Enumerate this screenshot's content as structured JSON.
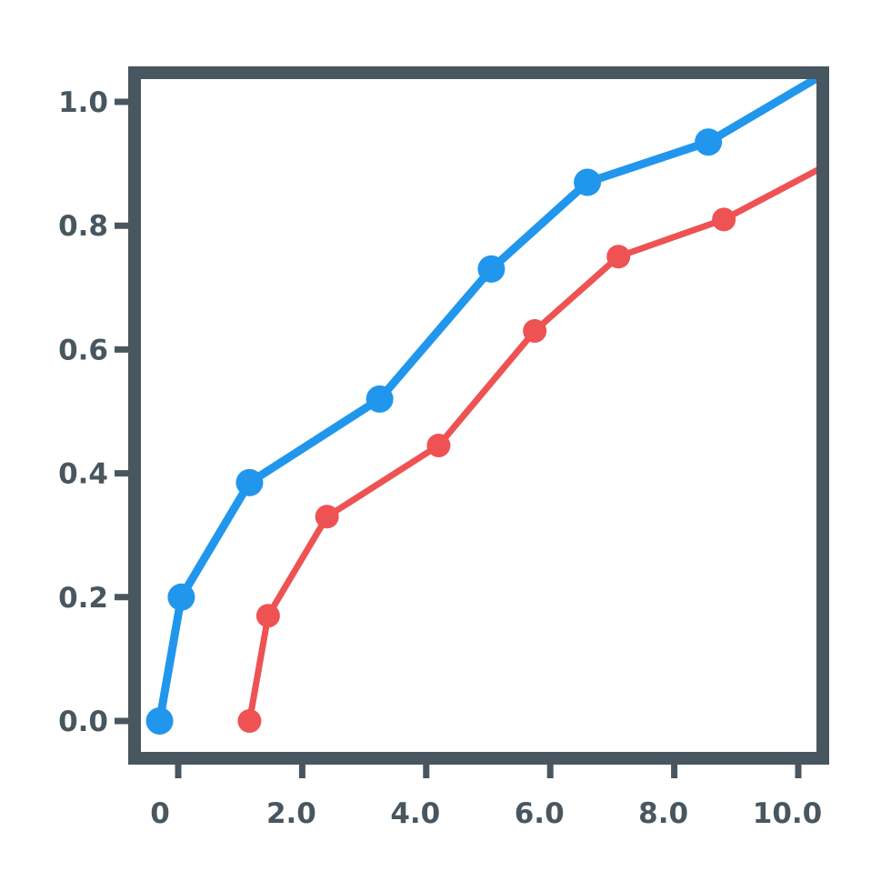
{
  "chart_data": {
    "type": "line",
    "title": "",
    "xlabel": "",
    "ylabel": "",
    "xlim": [
      -0.3,
      10.3
    ],
    "ylim": [
      -0.05,
      1.05
    ],
    "x_ticks": [
      0,
      2,
      4,
      6,
      8,
      10
    ],
    "x_tick_labels": [
      "0",
      "2.0",
      "4.0",
      "6.0",
      "8.0",
      "10.0"
    ],
    "y_ticks": [
      0,
      0.2,
      0.4,
      0.6,
      0.8,
      1.0
    ],
    "y_tick_labels": [
      "0.0",
      "0.2",
      "0.4",
      "0.6",
      "0.8",
      "1.0"
    ],
    "grid": false,
    "legend": "none",
    "series": [
      {
        "color": "#2196ed",
        "x": [
          -0.3,
          0.05,
          1.15,
          3.25,
          5.05,
          6.6,
          8.55
        ],
        "y": [
          0.0,
          0.2,
          0.385,
          0.52,
          0.73,
          0.87,
          0.935
        ],
        "line_continues_to": {
          "x": 10.5,
          "y": 1.05
        }
      },
      {
        "color": "#ee5253",
        "x": [
          1.15,
          1.45,
          2.4,
          4.2,
          5.75,
          7.1,
          8.8
        ],
        "y": [
          0.0,
          0.17,
          0.33,
          0.445,
          0.63,
          0.75,
          0.81
        ],
        "line_continues_to": {
          "x": 10.5,
          "y": 0.9
        }
      }
    ],
    "colors": {
      "frame": "#48565f",
      "text": "#48565f"
    }
  }
}
